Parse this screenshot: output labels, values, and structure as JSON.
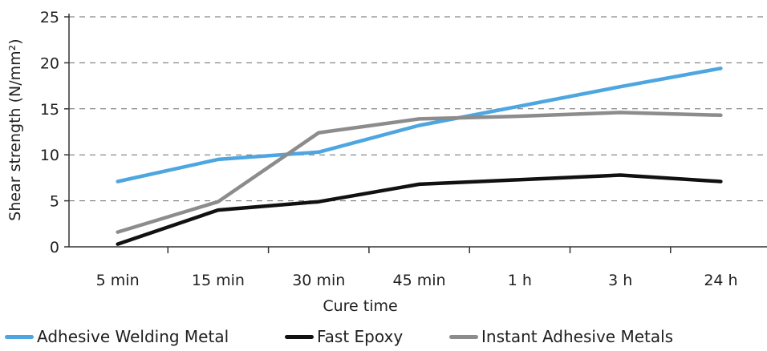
{
  "chart_data": {
    "type": "line",
    "xlabel": "Cure time",
    "ylabel": "Shear strength (N/mm²)",
    "categories": [
      "5 min",
      "15 min",
      "30 min",
      "45 min",
      "1 h",
      "3 h",
      "24 h"
    ],
    "ylim": [
      0,
      25
    ],
    "yticks": [
      "0",
      "5",
      "10",
      "15",
      "20",
      "25"
    ],
    "grid": true,
    "legend_position": "bottom",
    "series": [
      {
        "name": "Adhesive Welding Metal",
        "color": "#4da6e0",
        "values": [
          7.1,
          9.5,
          10.3,
          13.2,
          15.3,
          17.4,
          19.4
        ]
      },
      {
        "name": "Fast Epoxy",
        "color": "#111111",
        "values": [
          0.3,
          4.0,
          4.9,
          6.8,
          7.3,
          7.8,
          7.1
        ]
      },
      {
        "name": "Instant Adhesive Metals",
        "color": "#8c8c8c",
        "values": [
          1.6,
          4.9,
          12.4,
          13.9,
          14.2,
          14.6,
          14.3
        ]
      }
    ]
  }
}
